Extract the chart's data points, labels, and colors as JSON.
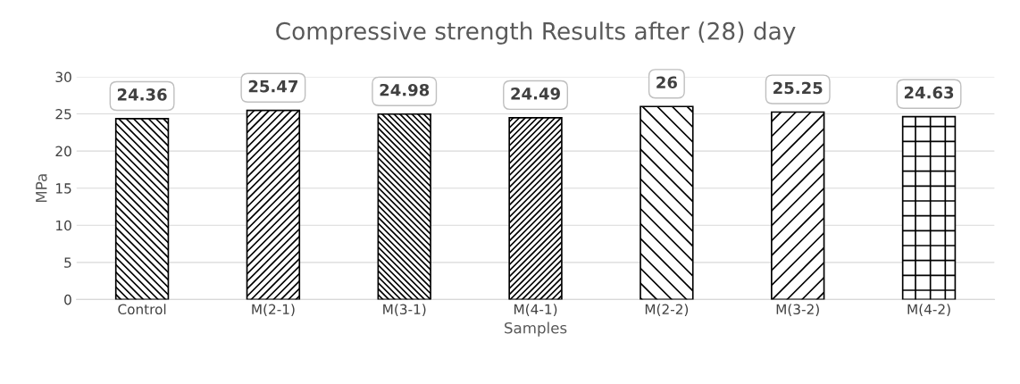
{
  "chart_data": {
    "type": "bar",
    "title": "Compressive strength Results after (28) day",
    "xlabel": "Samples",
    "ylabel": "MPa",
    "categories": [
      "Control",
      "M(2-1)",
      "M(3-1)",
      "M(4-1)",
      "M(2-2)",
      "M(3-2)",
      "M(4-2)"
    ],
    "values": [
      24.36,
      25.47,
      24.98,
      24.49,
      26,
      25.25,
      24.63
    ],
    "color": "#000000",
    "ylim": [
      0,
      30
    ],
    "yticks": [
      0,
      5,
      10,
      15,
      20,
      25,
      30
    ],
    "grid": "y",
    "data_labels": true,
    "legend": false
  }
}
